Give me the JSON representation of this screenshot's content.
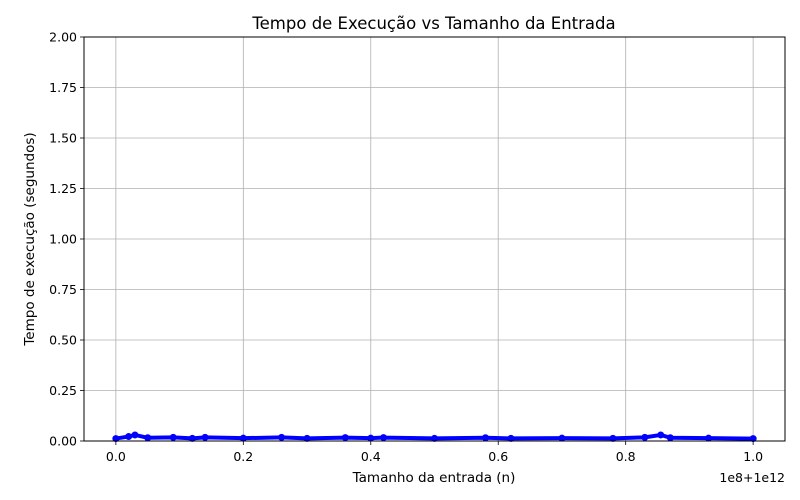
{
  "chart_data": {
    "type": "line",
    "title": "Tempo de Execução vs Tamanho da Entrada",
    "xlabel": "Tamanho da entrada (n)",
    "ylabel": "Tempo de execução (segundos)",
    "x_offset_label": "1e8+1e12",
    "xlim": [
      -0.05,
      1.05
    ],
    "ylim": [
      0,
      2.0
    ],
    "xticks": [
      0.0,
      0.2,
      0.4,
      0.6,
      0.8,
      1.0
    ],
    "xtick_labels": [
      "0.0",
      "0.2",
      "0.4",
      "0.6",
      "0.8",
      "1.0"
    ],
    "yticks": [
      0.0,
      0.25,
      0.5,
      0.75,
      1.0,
      1.25,
      1.5,
      1.75,
      2.0
    ],
    "ytick_labels": [
      "0.00",
      "0.25",
      "0.50",
      "0.75",
      "1.00",
      "1.25",
      "1.50",
      "1.75",
      "2.00"
    ],
    "grid": true,
    "series": [
      {
        "color": "#0000ff",
        "marker": "o",
        "x": [
          0.0,
          0.02,
          0.03,
          0.05,
          0.09,
          0.12,
          0.14,
          0.2,
          0.26,
          0.3,
          0.36,
          0.4,
          0.42,
          0.5,
          0.58,
          0.62,
          0.7,
          0.78,
          0.83,
          0.855,
          0.87,
          0.93,
          1.0
        ],
        "y": [
          0.012,
          0.022,
          0.03,
          0.016,
          0.018,
          0.013,
          0.018,
          0.014,
          0.018,
          0.013,
          0.017,
          0.014,
          0.017,
          0.013,
          0.016,
          0.013,
          0.014,
          0.013,
          0.018,
          0.03,
          0.016,
          0.014,
          0.012
        ]
      }
    ]
  }
}
